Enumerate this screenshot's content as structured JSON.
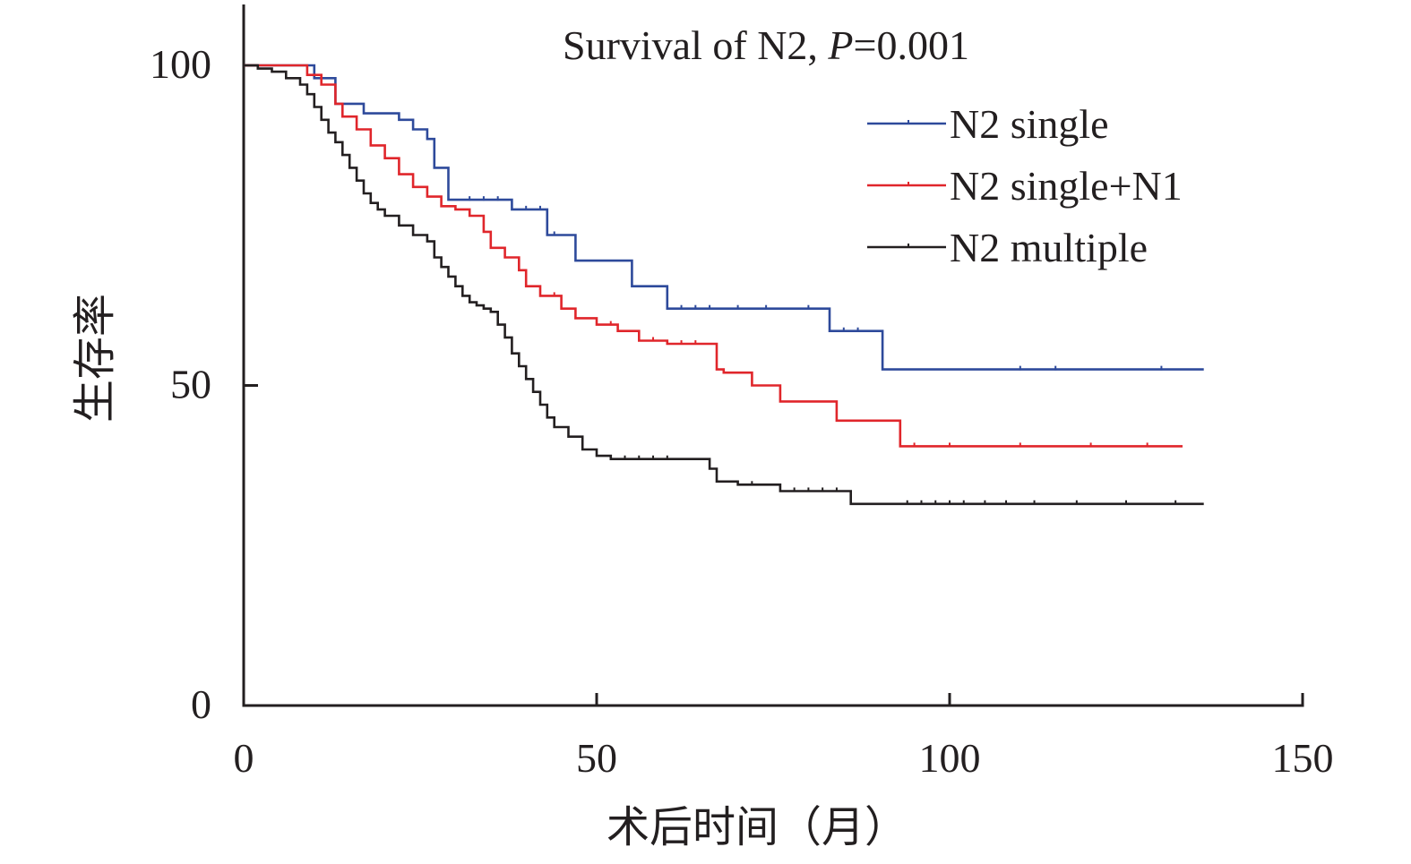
{
  "chart_data": {
    "type": "line",
    "title_prefix": "Survival of N2, ",
    "title_p": "P",
    "title_suffix": "=0.001",
    "xlabel": "术后时间（月）",
    "ylabel": "生存率",
    "xlim": [
      0,
      150
    ],
    "ylim": [
      0,
      100
    ],
    "xticks": [
      0,
      50,
      100,
      150
    ],
    "yticks": [
      0,
      50,
      100
    ],
    "grid": false,
    "legend_position": "top-right",
    "series": [
      {
        "name": "N2 single",
        "color": "#2e4a9b",
        "x": [
          0,
          10,
          13,
          17,
          22,
          24,
          26,
          27,
          29,
          38,
          43,
          47,
          55,
          60,
          83,
          90.5,
          136
        ],
        "y": [
          100,
          98,
          94,
          92.5,
          91.5,
          90,
          88.5,
          84,
          79,
          77.5,
          73.5,
          69.5,
          65.5,
          62,
          58.5,
          52.5,
          52.5
        ],
        "censor_x": [
          32,
          34,
          36,
          40,
          42,
          44,
          62,
          64,
          66,
          70,
          74,
          80,
          85,
          87,
          110,
          115,
          130
        ]
      },
      {
        "name": "N2 single+N1",
        "color": "#e0262b",
        "x": [
          0,
          8,
          9,
          11,
          13,
          14,
          16,
          18,
          20,
          22,
          24,
          26,
          28,
          30,
          32,
          34,
          35,
          37,
          39,
          40,
          42,
          45,
          47,
          50,
          53,
          56,
          60,
          67,
          68,
          72,
          76,
          84,
          93,
          133
        ],
        "y": [
          100,
          100,
          98.5,
          97,
          94,
          92,
          90,
          87.5,
          85.5,
          83,
          81,
          79.5,
          78,
          77.5,
          76.5,
          74,
          71.5,
          70,
          68,
          65.5,
          64,
          62,
          60.5,
          59.5,
          58.5,
          57,
          56.5,
          52.5,
          52,
          50,
          47.5,
          44.5,
          40.5,
          40.5
        ],
        "censor_x": [
          44,
          52,
          58,
          62,
          64,
          95,
          100,
          110,
          120,
          128
        ]
      },
      {
        "name": "N2 multiple",
        "color": "#231f20",
        "x": [
          0,
          2,
          4,
          6,
          8,
          9,
          10,
          11,
          12,
          13,
          14,
          15,
          16,
          17,
          18,
          19,
          20,
          22,
          24,
          26,
          27,
          28,
          29,
          30,
          31,
          32,
          33,
          34,
          35,
          36,
          37,
          38,
          39,
          40,
          41,
          42,
          43,
          44,
          46,
          48,
          50,
          52,
          56,
          60,
          65,
          66,
          67,
          70,
          76,
          86,
          90,
          100,
          136
        ],
        "y": [
          100,
          99.5,
          99,
          98,
          97,
          95.5,
          93.5,
          91.5,
          89.5,
          88,
          86,
          84,
          82,
          80,
          78.5,
          77.5,
          76.5,
          75,
          73.5,
          72.5,
          70,
          68.5,
          67,
          65.5,
          64,
          63,
          62.5,
          62,
          61.5,
          59.5,
          57.5,
          55,
          53,
          51,
          49,
          47,
          45,
          43.5,
          42,
          40,
          39,
          38.5,
          38.5,
          38.5,
          38.5,
          37,
          35,
          34.5,
          33.5,
          31.5,
          31.5,
          31.5,
          31.5
        ],
        "censor_x": [
          52,
          54,
          56,
          58,
          60,
          72,
          78,
          80,
          82,
          84,
          94,
          96,
          98,
          100,
          102,
          105,
          108,
          112,
          118,
          125,
          132
        ]
      }
    ]
  }
}
